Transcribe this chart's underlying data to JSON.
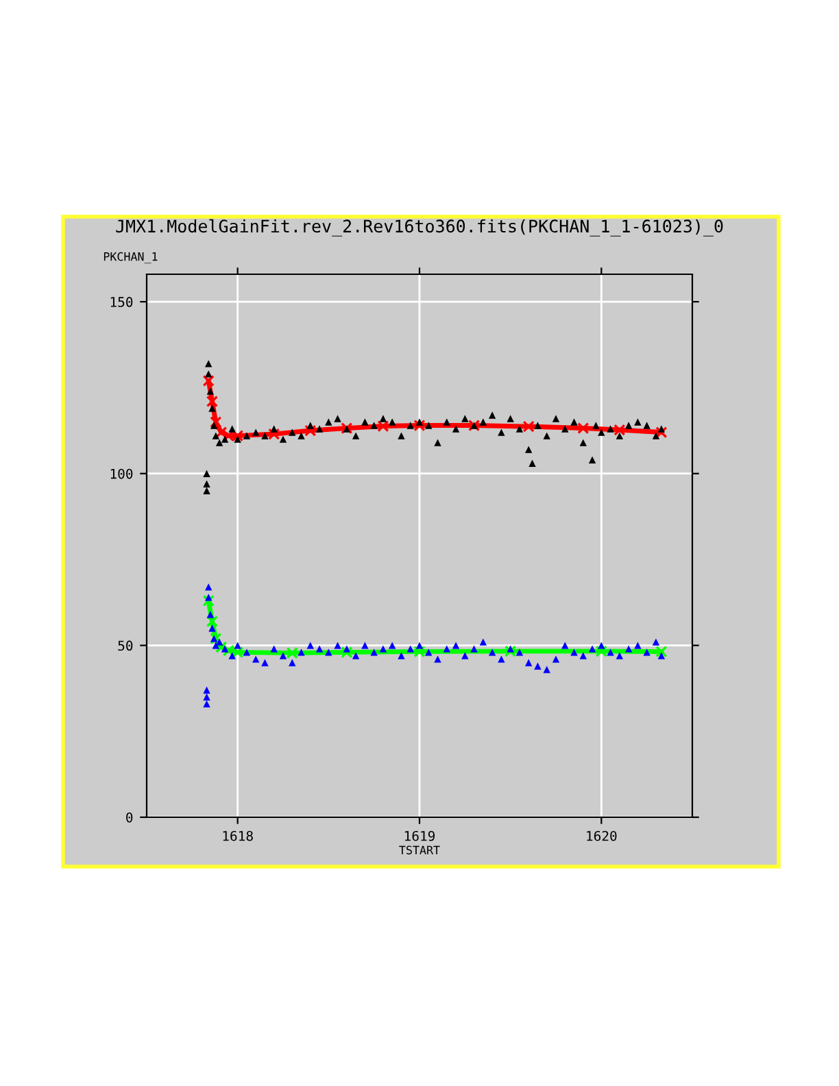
{
  "chart_data": {
    "type": "scatter",
    "title": "JMX1.ModelGainFit.rev_2.Rev16to360.fits(PKCHAN_1_1-61023)_0",
    "ylabel": "PKCHAN_1",
    "xlabel": "TSTART",
    "xlim": [
      1617.5,
      1620.5
    ],
    "xticks": [
      1618,
      1619,
      1620
    ],
    "ylim": [
      0,
      158
    ],
    "yticks": [
      0,
      50,
      100,
      150
    ],
    "grid": true,
    "marker": "triangle",
    "series": [
      {
        "type": "scatter",
        "color": "#000000",
        "x": [
          1617.83,
          1617.83,
          1617.83,
          1617.84,
          1617.84,
          1617.85,
          1617.86,
          1617.87,
          1617.88,
          1617.9,
          1617.93,
          1617.97,
          1618.0,
          1618.05,
          1618.1,
          1618.15,
          1618.2,
          1618.25,
          1618.3,
          1618.35,
          1618.4,
          1618.45,
          1618.5,
          1618.55,
          1618.6,
          1618.65,
          1618.7,
          1618.75,
          1618.8,
          1618.85,
          1618.9,
          1618.95,
          1619.0,
          1619.05,
          1619.1,
          1619.15,
          1619.2,
          1619.25,
          1619.3,
          1619.35,
          1619.4,
          1619.45,
          1619.5,
          1619.55,
          1619.6,
          1619.62,
          1619.65,
          1619.7,
          1619.75,
          1619.8,
          1619.85,
          1619.9,
          1619.95,
          1619.97,
          1620.0,
          1620.05,
          1620.1,
          1620.15,
          1620.2,
          1620.25,
          1620.3,
          1620.33
        ],
        "values": [
          100,
          97,
          95,
          132,
          129,
          124,
          119,
          114,
          111,
          109,
          110,
          113,
          110,
          111,
          112,
          111,
          113,
          110,
          112,
          111,
          114,
          113,
          115,
          116,
          113,
          111,
          115,
          114,
          116,
          115,
          111,
          114,
          115,
          114,
          109,
          115,
          113,
          116,
          114,
          115,
          117,
          112,
          116,
          113,
          107,
          103,
          114,
          111,
          116,
          113,
          115,
          109,
          104,
          114,
          112,
          113,
          111,
          114,
          115,
          114,
          111,
          113
        ]
      },
      {
        "type": "line",
        "marker": "cross",
        "color": "#ff0000",
        "x": [
          1617.84,
          1617.86,
          1617.88,
          1617.91,
          1617.95,
          1618.0,
          1618.2,
          1618.4,
          1618.6,
          1618.8,
          1619.0,
          1619.3,
          1619.6,
          1619.9,
          1620.1,
          1620.33
        ],
        "values": [
          127,
          121,
          115,
          112,
          111,
          111,
          111.5,
          112.5,
          113.2,
          113.8,
          114,
          114,
          113.7,
          113.2,
          112.7,
          112
        ]
      },
      {
        "type": "scatter",
        "color": "#0000ff",
        "x": [
          1617.83,
          1617.83,
          1617.83,
          1617.84,
          1617.84,
          1617.85,
          1617.86,
          1617.87,
          1617.88,
          1617.9,
          1617.93,
          1617.97,
          1618.0,
          1618.05,
          1618.1,
          1618.15,
          1618.2,
          1618.25,
          1618.3,
          1618.35,
          1618.4,
          1618.45,
          1618.5,
          1618.55,
          1618.6,
          1618.65,
          1618.7,
          1618.75,
          1618.8,
          1618.85,
          1618.9,
          1618.95,
          1619.0,
          1619.05,
          1619.1,
          1619.15,
          1619.2,
          1619.25,
          1619.3,
          1619.35,
          1619.4,
          1619.45,
          1619.5,
          1619.55,
          1619.6,
          1619.65,
          1619.7,
          1619.75,
          1619.8,
          1619.85,
          1619.9,
          1619.95,
          1620.0,
          1620.05,
          1620.1,
          1620.15,
          1620.2,
          1620.25,
          1620.3,
          1620.33
        ],
        "values": [
          37,
          35,
          33,
          67,
          64,
          59,
          55,
          52,
          50,
          51,
          49,
          47,
          50,
          48,
          46,
          45,
          49,
          47,
          45,
          48,
          50,
          49,
          48,
          50,
          49,
          47,
          50,
          48,
          49,
          50,
          47,
          49,
          50,
          48,
          46,
          49,
          50,
          47,
          49,
          51,
          48,
          46,
          49,
          48,
          45,
          44,
          43,
          46,
          50,
          48,
          47,
          49,
          50,
          48,
          47,
          49,
          50,
          48,
          51,
          47
        ]
      },
      {
        "type": "line",
        "marker": "cross",
        "color": "#00ff00",
        "x": [
          1617.84,
          1617.86,
          1617.88,
          1617.91,
          1617.95,
          1618.0,
          1618.3,
          1618.6,
          1619.0,
          1619.5,
          1620.0,
          1620.33
        ],
        "values": [
          63,
          57,
          52,
          49.5,
          48.5,
          48,
          47.8,
          48,
          48.2,
          48.3,
          48.3,
          48.2
        ]
      }
    ]
  }
}
